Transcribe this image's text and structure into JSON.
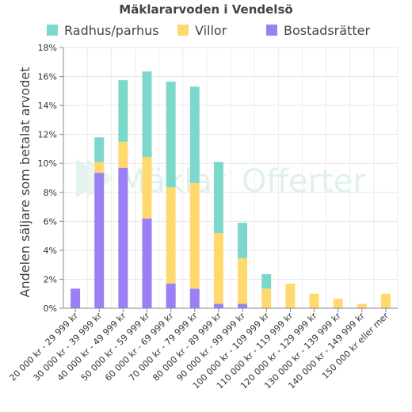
{
  "chart_data": {
    "type": "bar",
    "stacked": true,
    "title": "Mäklararvoden i Vendelsö",
    "ylabel": "Andelen säljare som betalat arvodet",
    "xlabel": "",
    "ylim": [
      0,
      18
    ],
    "y_ticks": [
      "0%",
      "2%",
      "4%",
      "6%",
      "8%",
      "10%",
      "12%",
      "14%",
      "16%",
      "18%"
    ],
    "y_tick_values": [
      0,
      2,
      4,
      6,
      8,
      10,
      12,
      14,
      16,
      18
    ],
    "grid": true,
    "legend_position": "top",
    "categories": [
      "20 000 kr - 29 999 kr",
      "30 000 kr - 39 999 kr",
      "40 000 kr - 49 999 kr",
      "50 000 kr - 59 999 kr",
      "60 000 kr - 69 999 kr",
      "70 000 kr - 79 999 kr",
      "80 000 kr - 89 999 kr",
      "90 000 kr - 99 999 kr",
      "100 000 kr - 109 999 kr",
      "110 000 kr - 119 999 kr",
      "120 000 kr - 129 999 kr",
      "130 000 kr - 139 999 kr",
      "140 000 kr - 149 999 kr",
      "150 000 kr eller mer"
    ],
    "series": [
      {
        "name": "Bostadsrätter",
        "color": "#9b7ff5",
        "values": [
          1.35,
          9.35,
          9.7,
          6.2,
          1.7,
          1.35,
          0.3,
          0.3,
          0,
          0,
          0,
          0,
          0,
          0
        ]
      },
      {
        "name": "Villor",
        "color": "#ffd86e",
        "values": [
          0,
          0.75,
          1.8,
          4.25,
          6.65,
          7.3,
          4.9,
          3.15,
          1.35,
          1.7,
          1.0,
          0.65,
          0.3,
          1.0
        ]
      },
      {
        "name": "Radhus/parhus",
        "color": "#7dd8cc",
        "values": [
          0,
          1.7,
          4.25,
          5.9,
          7.3,
          6.65,
          4.9,
          2.45,
          1.0,
          0,
          0,
          0,
          0,
          0
        ]
      }
    ],
    "legend_order": [
      "Radhus/parhus",
      "Villor",
      "Bostadsrätter"
    ]
  },
  "watermark": {
    "text_a": "Mäklar",
    "text_b": "Offerter"
  }
}
